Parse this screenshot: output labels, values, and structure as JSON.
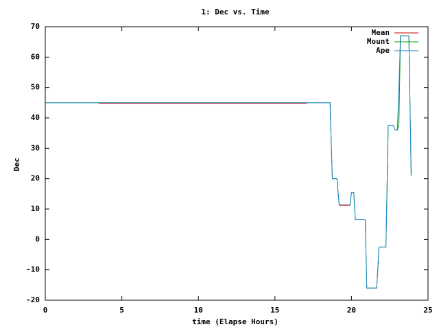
{
  "chart_data": {
    "type": "line",
    "title": "1: Dec vs. Time",
    "x_label": "time (Elapse Hours)",
    "y_label": "Dec",
    "xlim": [
      0,
      25
    ],
    "xticks": [
      0,
      5,
      10,
      15,
      20,
      25
    ],
    "ylim": [
      -20,
      70
    ],
    "yticks": [
      -20,
      -10,
      0,
      10,
      20,
      30,
      40,
      50,
      60,
      70
    ],
    "grid": false,
    "legend": "top-right",
    "series": [
      {
        "name": "Mean",
        "color": "#c00000",
        "x": [
          3.5,
          17.1,
          18,
          19.2,
          19.9
        ],
        "values": [
          44.8,
          44.8,
          null,
          11.3,
          11.3
        ]
      },
      {
        "name": "Mount",
        "color": "#00a000",
        "x": [
          0,
          18.6,
          18.75,
          19.05,
          19.2,
          19.9,
          20.0,
          20.15,
          20.25,
          20.9,
          21.0,
          21.65,
          21.8,
          22.25,
          22.4,
          22.75,
          22.85,
          23.0,
          23.1,
          23.2,
          23.75,
          23.9
        ],
        "values": [
          45,
          45,
          20,
          20,
          11.3,
          11.3,
          15.5,
          15.5,
          6.5,
          6.5,
          -16,
          -16,
          -2.5,
          -2.5,
          37.5,
          37.5,
          36,
          36,
          38,
          67,
          67,
          21
        ]
      },
      {
        "name": "Ape",
        "color": "#1a80c8",
        "x": [
          0,
          18.6,
          18.75,
          19.05,
          19.2,
          19.9,
          20.0,
          20.15,
          20.25,
          20.9,
          21.0,
          21.65,
          21.8,
          22.25,
          22.4,
          22.75,
          22.85,
          23.0,
          23.1,
          23.2,
          23.75,
          23.9
        ],
        "values": [
          45,
          45,
          20,
          20,
          11.3,
          11.3,
          15.5,
          15.5,
          6.5,
          6.5,
          -16,
          -16,
          -2.5,
          -2.5,
          37.5,
          37.5,
          36,
          36,
          50,
          67,
          67,
          21
        ]
      }
    ]
  }
}
